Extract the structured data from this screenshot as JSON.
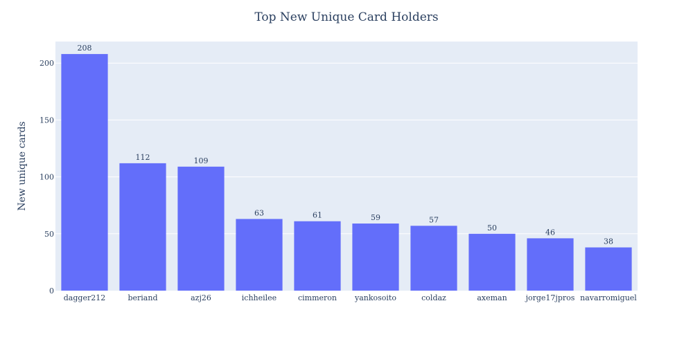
{
  "chart_data": {
    "type": "bar",
    "title": "Top New Unique Card Holders",
    "xlabel": "",
    "ylabel": "New unique cards",
    "categories": [
      "dagger212",
      "beriand",
      "azj26",
      "ichheilee",
      "cimmeron",
      "yankosoito",
      "coldaz",
      "axeman",
      "jorge17jpros",
      "navarromiguel"
    ],
    "values": [
      208,
      112,
      109,
      63,
      61,
      59,
      57,
      50,
      46,
      38
    ],
    "ylim": [
      0,
      219
    ],
    "yticks": [
      0,
      50,
      100,
      150,
      200
    ],
    "grid": true,
    "legend": "none",
    "colors": {
      "bar": "#636efa",
      "plot_bg": "#e5ecf6",
      "text": "#2a3f5f"
    }
  }
}
